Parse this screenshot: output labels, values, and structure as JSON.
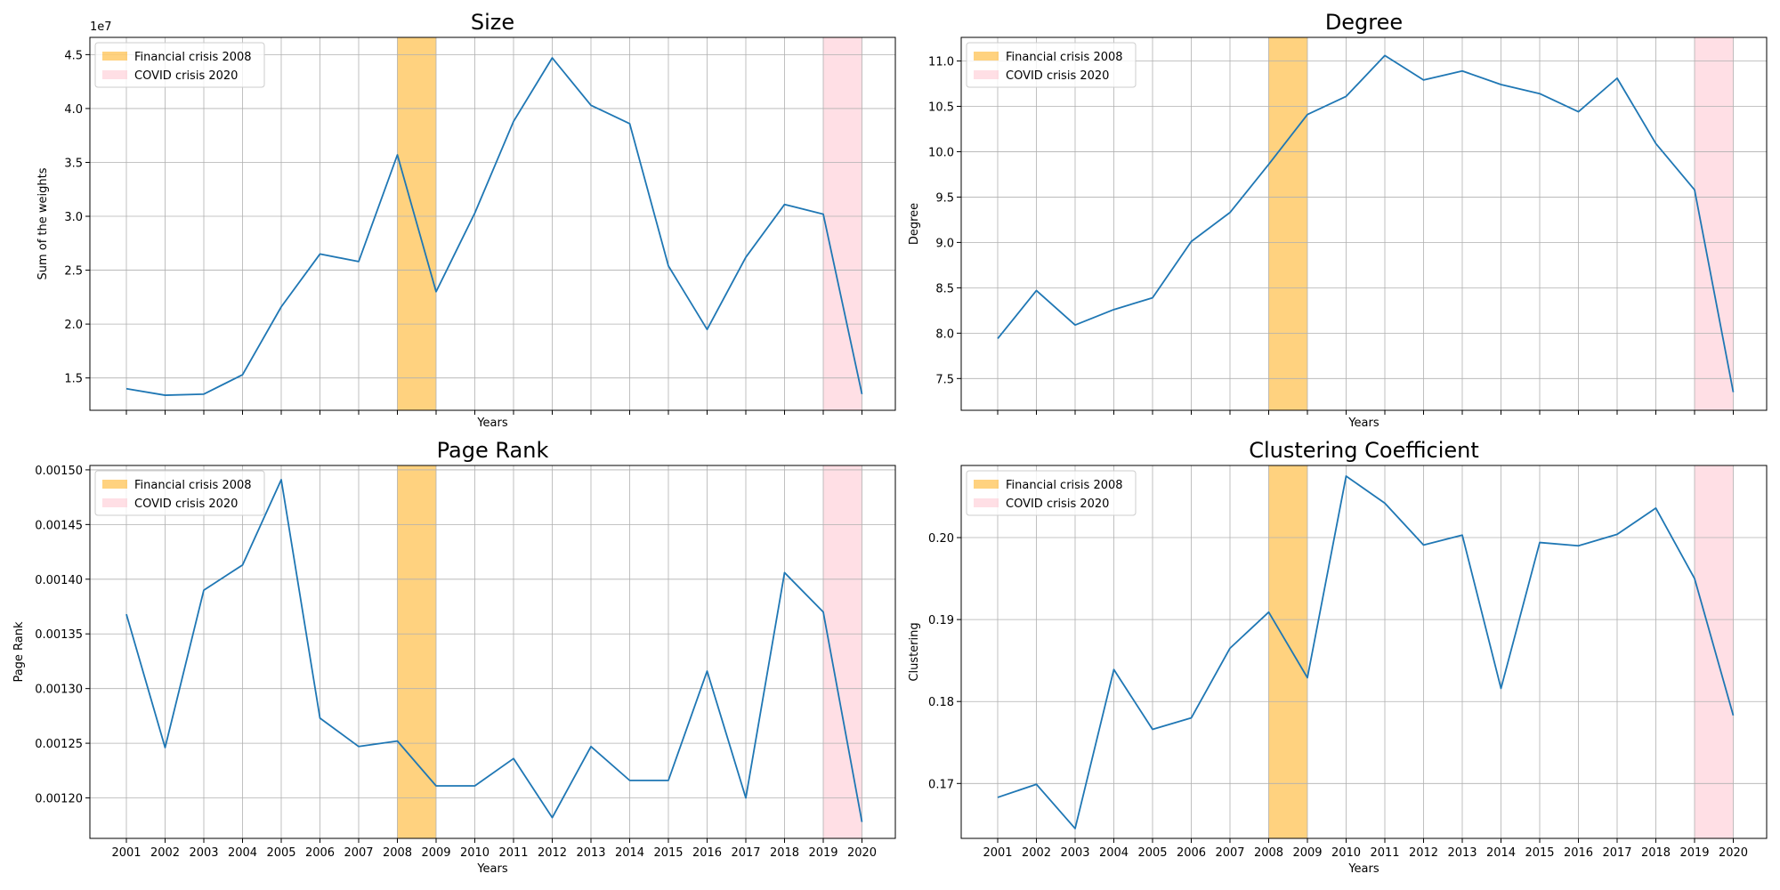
{
  "chart_data": [
    {
      "type": "line",
      "title": "Size",
      "xlabel": "Years",
      "ylabel": "Sum of the weights",
      "y_offset_text": "1e7",
      "x": [
        "2001",
        "2002",
        "2003",
        "2004",
        "2005",
        "2006",
        "2007",
        "2008",
        "2009",
        "2010",
        "2011",
        "2012",
        "2013",
        "2014",
        "2015",
        "2016",
        "2017",
        "2018",
        "2019",
        "2020"
      ],
      "show_x_tick_labels": false,
      "series": [
        {
          "color": "#1f77b4",
          "values": [
            1.4,
            1.34,
            1.35,
            1.53,
            2.16,
            2.65,
            2.58,
            3.57,
            2.3,
            3.03,
            3.88,
            4.47,
            4.03,
            3.86,
            2.54,
            1.95,
            2.62,
            3.11,
            3.02,
            1.35
          ]
        }
      ],
      "ylim": [
        1.2,
        4.66
      ],
      "yticks": [
        1.5,
        2.0,
        2.5,
        3.0,
        3.5,
        4.0,
        4.5
      ],
      "ytick_labels": [
        "1.5",
        "2.0",
        "2.5",
        "3.0",
        "3.5",
        "4.0",
        "4.5"
      ],
      "grid": true,
      "legend_position": "top-left",
      "legend": [
        "Financial crisis 2008",
        "COVID crisis 2020"
      ]
    },
    {
      "type": "line",
      "title": "Degree",
      "xlabel": "Years",
      "ylabel": "Degree",
      "x": [
        "2001",
        "2002",
        "2003",
        "2004",
        "2005",
        "2006",
        "2007",
        "2008",
        "2009",
        "2010",
        "2011",
        "2012",
        "2013",
        "2014",
        "2015",
        "2016",
        "2017",
        "2018",
        "2019",
        "2020"
      ],
      "show_x_tick_labels": false,
      "series": [
        {
          "color": "#1f77b4",
          "values": [
            7.94,
            8.47,
            8.09,
            8.26,
            8.39,
            9.01,
            9.33,
            9.86,
            10.41,
            10.61,
            11.06,
            10.79,
            10.89,
            10.74,
            10.64,
            10.44,
            10.81,
            10.09,
            9.58,
            7.35
          ]
        }
      ],
      "ylim": [
        7.15,
        11.26
      ],
      "yticks": [
        7.5,
        8.0,
        8.5,
        9.0,
        9.5,
        10.0,
        10.5,
        11.0
      ],
      "ytick_labels": [
        "7.5",
        "8.0",
        "8.5",
        "9.0",
        "9.5",
        "10.0",
        "10.5",
        "11.0"
      ],
      "grid": true,
      "legend_position": "top-left",
      "legend": [
        "Financial crisis 2008",
        "COVID crisis 2020"
      ]
    },
    {
      "type": "line",
      "title": "Page Rank",
      "xlabel": "Years",
      "ylabel": "Page Rank",
      "x": [
        "2001",
        "2002",
        "2003",
        "2004",
        "2005",
        "2006",
        "2007",
        "2008",
        "2009",
        "2010",
        "2011",
        "2012",
        "2013",
        "2014",
        "2015",
        "2016",
        "2017",
        "2018",
        "2019",
        "2020"
      ],
      "show_x_tick_labels": true,
      "series": [
        {
          "color": "#1f77b4",
          "values": [
            0.001368,
            0.001246,
            0.00139,
            0.001413,
            0.001491,
            0.001273,
            0.001247,
            0.001252,
            0.001211,
            0.001211,
            0.001236,
            0.001182,
            0.001247,
            0.001216,
            0.001216,
            0.001316,
            0.0012,
            0.001406,
            0.00137,
            0.001178
          ]
        }
      ],
      "ylim": [
        0.001163,
        0.001504
      ],
      "yticks": [
        0.0012,
        0.00125,
        0.0013,
        0.00135,
        0.0014,
        0.00145,
        0.0015
      ],
      "ytick_labels": [
        "0.00120",
        "0.00125",
        "0.00130",
        "0.00135",
        "0.00140",
        "0.00145",
        "0.00150"
      ],
      "grid": true,
      "legend_position": "top-left",
      "legend": [
        "Financial crisis 2008",
        "COVID crisis 2020"
      ]
    },
    {
      "type": "line",
      "title": "Clustering Coefficient",
      "xlabel": "Years",
      "ylabel": "Clustering",
      "x": [
        "2001",
        "2002",
        "2003",
        "2004",
        "2005",
        "2006",
        "2007",
        "2008",
        "2009",
        "2010",
        "2011",
        "2012",
        "2013",
        "2014",
        "2015",
        "2016",
        "2017",
        "2018",
        "2019",
        "2020"
      ],
      "show_x_tick_labels": true,
      "series": [
        {
          "color": "#1f77b4",
          "values": [
            0.1683,
            0.1699,
            0.1645,
            0.1839,
            0.1766,
            0.178,
            0.1865,
            0.1909,
            0.1829,
            0.2075,
            0.2042,
            0.1991,
            0.2003,
            0.1816,
            0.1994,
            0.199,
            0.2004,
            0.2036,
            0.195,
            0.1783
          ]
        }
      ],
      "ylim": [
        0.1633,
        0.2088
      ],
      "yticks": [
        0.17,
        0.18,
        0.19,
        0.2
      ],
      "ytick_labels": [
        "0.17",
        "0.18",
        "0.19",
        "0.20"
      ],
      "grid": true,
      "legend_position": "top-left",
      "legend": [
        "Financial crisis 2008",
        "COVID crisis 2020"
      ]
    }
  ],
  "highlights": [
    {
      "label": "Financial crisis 2008",
      "from": "2008",
      "to": "2009",
      "color": "#ffa500",
      "opacity": 0.5
    },
    {
      "label": "COVID crisis 2020",
      "from": "2019",
      "to": "2020",
      "color": "#ffc0cb",
      "opacity": 0.5
    }
  ]
}
